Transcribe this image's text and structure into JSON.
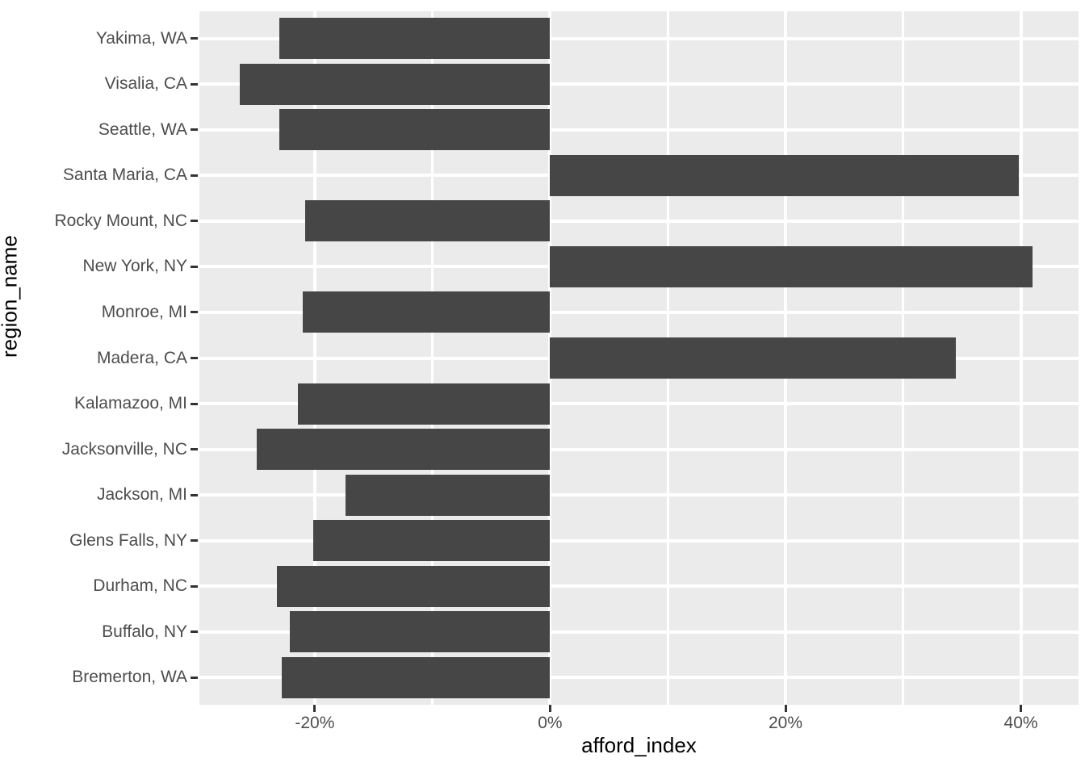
{
  "chart_data": {
    "type": "bar",
    "orientation": "horizontal",
    "xlabel": "afford_index",
    "ylabel": "region_name",
    "categories_top_to_bottom": [
      "Yakima, WA",
      "Visalia, CA",
      "Seattle, WA",
      "Santa Maria, CA",
      "Rocky Mount, NC",
      "New York, NY",
      "Monroe, MI",
      "Madera, CA",
      "Kalamazoo, MI",
      "Jacksonville, NC",
      "Jackson, MI",
      "Glens Falls, NY",
      "Durham, NC",
      "Buffalo, NY",
      "Bremerton, WA"
    ],
    "values": [
      -23.0,
      -26.4,
      -23.0,
      39.8,
      -20.8,
      41.0,
      -21.0,
      34.5,
      -21.4,
      -24.9,
      -17.4,
      -20.1,
      -23.2,
      -22.1,
      -22.8
    ],
    "value_unit": "percent",
    "xlim": [
      -29.8,
      44.9
    ],
    "x_major_ticks": [
      {
        "value": -20,
        "label": "-20%"
      },
      {
        "value": 0,
        "label": "0%"
      },
      {
        "value": 20,
        "label": "20%"
      },
      {
        "value": 40,
        "label": "40%"
      }
    ],
    "x_minor_ticks": [
      -10,
      10,
      30
    ],
    "grid": true,
    "legend": false,
    "bar_relative_width": 0.9,
    "category_expansion": 0.6
  },
  "colors": {
    "bar": "#464646",
    "panel_background": "#EBEBEB",
    "gridline": "#FFFFFF",
    "axis_text": "#4D4D4D",
    "axis_title": "#000000",
    "tick_mark": "#333333",
    "page_background": "#FFFFFF"
  }
}
